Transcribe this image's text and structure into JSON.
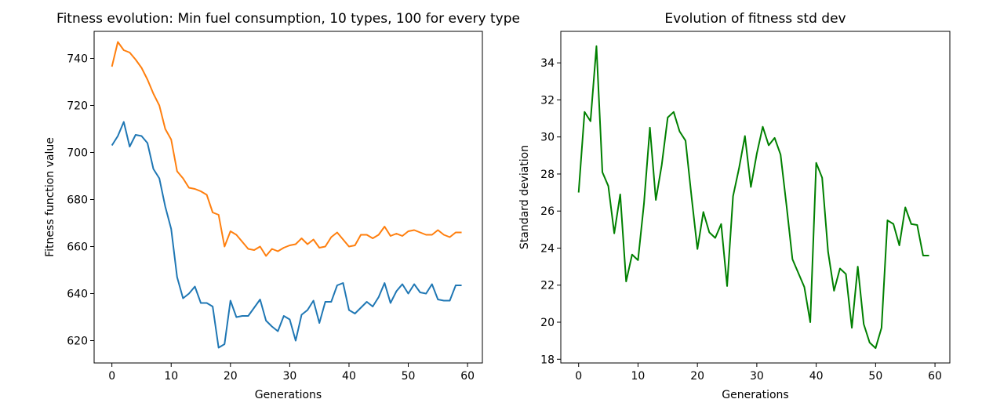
{
  "chart_data": [
    {
      "type": "line",
      "title": "Fitness evolution: Min fuel consumption, 10 types, 100 for every type",
      "xlabel": "Generations",
      "ylabel": "Fitness function value",
      "xlim": [
        -3,
        62.5
      ],
      "ylim": [
        610.5,
        751.5
      ],
      "xticks": [
        0,
        10,
        20,
        30,
        40,
        50,
        60
      ],
      "yticks": [
        620,
        640,
        660,
        680,
        700,
        720,
        740
      ],
      "grid": false,
      "legend": "none",
      "series": [
        {
          "color": "#ff7f0e",
          "x": [
            0,
            1,
            2,
            3,
            4,
            5,
            6,
            7,
            8,
            9,
            10,
            11,
            12,
            13,
            14,
            15,
            16,
            17,
            18,
            19,
            20,
            21,
            22,
            23,
            24,
            25,
            26,
            27,
            28,
            29,
            30,
            31,
            32,
            33,
            34,
            35,
            36,
            37,
            38,
            39,
            40,
            41,
            42,
            43,
            44,
            45,
            46,
            47,
            48,
            49,
            50,
            51,
            52,
            53,
            54,
            55,
            56,
            57,
            58,
            59
          ],
          "y": [
            736.5,
            747,
            743.5,
            742.5,
            739.5,
            736,
            731,
            725,
            720,
            710,
            705.5,
            692,
            689,
            685,
            684.5,
            683.5,
            682,
            674.5,
            673.5,
            660,
            666.5,
            665,
            662,
            659,
            658.5,
            660,
            656,
            659,
            658,
            659.5,
            660.5,
            661,
            663.5,
            661,
            663,
            659.5,
            660,
            664,
            666,
            663,
            660,
            660.5,
            665,
            665,
            663.5,
            665,
            668.5,
            664.5,
            665.5,
            664.5,
            666.5,
            667,
            666,
            665,
            665,
            667,
            665,
            664,
            666,
            666
          ]
        },
        {
          "color": "#1f77b4",
          "x": [
            0,
            1,
            2,
            3,
            4,
            5,
            6,
            7,
            8,
            9,
            10,
            11,
            12,
            13,
            14,
            15,
            16,
            17,
            18,
            19,
            20,
            21,
            22,
            23,
            24,
            25,
            26,
            27,
            28,
            29,
            30,
            31,
            32,
            33,
            34,
            35,
            36,
            37,
            38,
            39,
            40,
            41,
            42,
            43,
            44,
            45,
            46,
            47,
            48,
            49,
            50,
            51,
            52,
            53,
            54,
            55,
            56,
            57,
            58,
            59
          ],
          "y": [
            703,
            707,
            713,
            702.5,
            707.5,
            707,
            704,
            693,
            689,
            677,
            667.5,
            647,
            638,
            640,
            643,
            636,
            636,
            634.5,
            617,
            618.5,
            637,
            630,
            630.5,
            630.5,
            634,
            637.5,
            628.5,
            626,
            624,
            630.5,
            629,
            620,
            631,
            633,
            637,
            627.5,
            636.5,
            636.5,
            643.5,
            644.5,
            633,
            631.5,
            634,
            636.5,
            634.5,
            638.5,
            644.5,
            636,
            641,
            644,
            640,
            644,
            640.5,
            640,
            644,
            637.5,
            637,
            637,
            643.5,
            643.5
          ]
        }
      ]
    },
    {
      "type": "line",
      "title": "Evolution of fitness std dev",
      "xlabel": "Generations",
      "ylabel": "Standard deviation",
      "xlim": [
        -3,
        62.5
      ],
      "ylim": [
        17.8,
        35.7
      ],
      "xticks": [
        0,
        10,
        20,
        30,
        40,
        50,
        60
      ],
      "yticks": [
        18,
        20,
        22,
        24,
        26,
        28,
        30,
        32,
        34
      ],
      "grid": false,
      "legend": "none",
      "series": [
        {
          "color": "#008000",
          "x": [
            0,
            1,
            2,
            3,
            4,
            5,
            6,
            7,
            8,
            9,
            10,
            11,
            12,
            13,
            14,
            15,
            16,
            17,
            18,
            19,
            20,
            21,
            22,
            23,
            24,
            25,
            26,
            27,
            28,
            29,
            30,
            31,
            32,
            33,
            34,
            35,
            36,
            37,
            38,
            39,
            40,
            41,
            42,
            43,
            44,
            45,
            46,
            47,
            48,
            49,
            50,
            51,
            52,
            53,
            54,
            55,
            56,
            57,
            58,
            59
          ],
          "y": [
            27,
            31.35,
            30.85,
            34.9,
            28.1,
            27.35,
            24.8,
            26.9,
            22.2,
            23.65,
            23.35,
            26.4,
            30.5,
            26.6,
            28.5,
            31.05,
            31.35,
            30.3,
            29.8,
            26.8,
            23.95,
            25.95,
            24.85,
            24.55,
            25.3,
            21.95,
            26.8,
            28.3,
            30.05,
            27.3,
            29.1,
            30.55,
            29.55,
            29.95,
            29.05,
            26.3,
            23.4,
            22.65,
            21.9,
            20,
            28.6,
            27.8,
            23.8,
            21.7,
            22.9,
            22.6,
            19.7,
            23,
            19.9,
            18.9,
            18.6,
            19.7,
            25.5,
            25.3,
            24.15,
            26.2,
            25.3,
            25.25,
            23.6,
            23.6
          ]
        }
      ]
    }
  ]
}
